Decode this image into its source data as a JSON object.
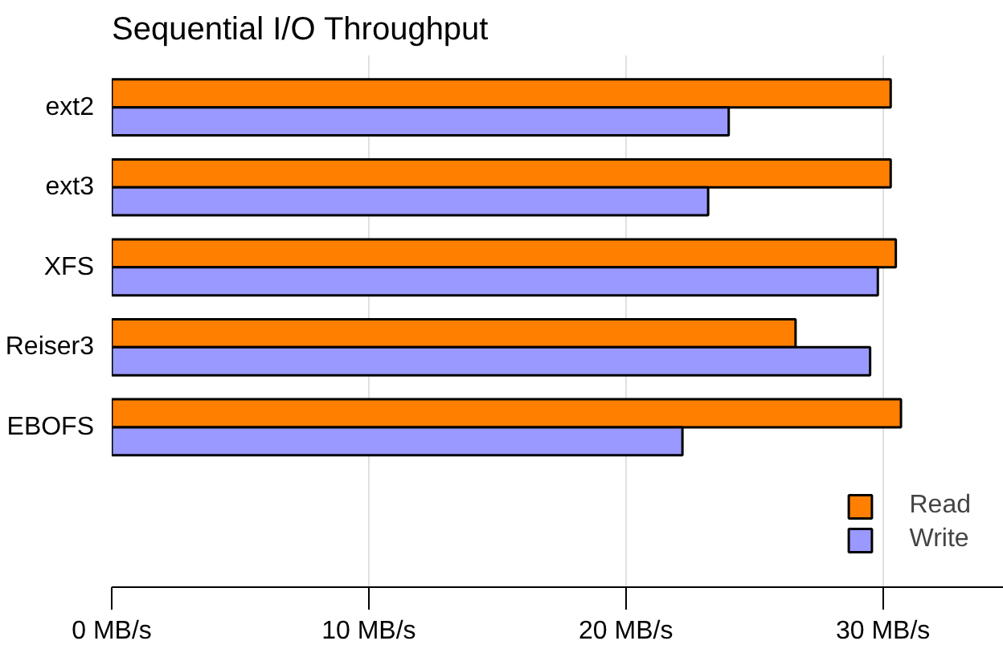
{
  "chart_data": {
    "type": "bar",
    "orientation": "horizontal",
    "title": "Sequential I/O Throughput",
    "categories": [
      "ext2",
      "ext3",
      "XFS",
      "Reiser3",
      "EBOFS"
    ],
    "series": [
      {
        "name": "Read",
        "color": "#ff8000",
        "values": [
          30.3,
          30.3,
          30.5,
          26.6,
          30.7
        ]
      },
      {
        "name": "Write",
        "color": "#9999ff",
        "values": [
          24.0,
          23.2,
          29.8,
          29.5,
          22.2
        ]
      }
    ],
    "xlim": [
      0,
      34.7
    ],
    "xticks": [
      {
        "value": 0,
        "label": "0 MB/s"
      },
      {
        "value": 10,
        "label": "10 MB/s"
      },
      {
        "value": 20,
        "label": "20 MB/s"
      },
      {
        "value": 30,
        "label": "30 MB/s"
      }
    ],
    "grid": "x",
    "legend": "bottom right"
  }
}
